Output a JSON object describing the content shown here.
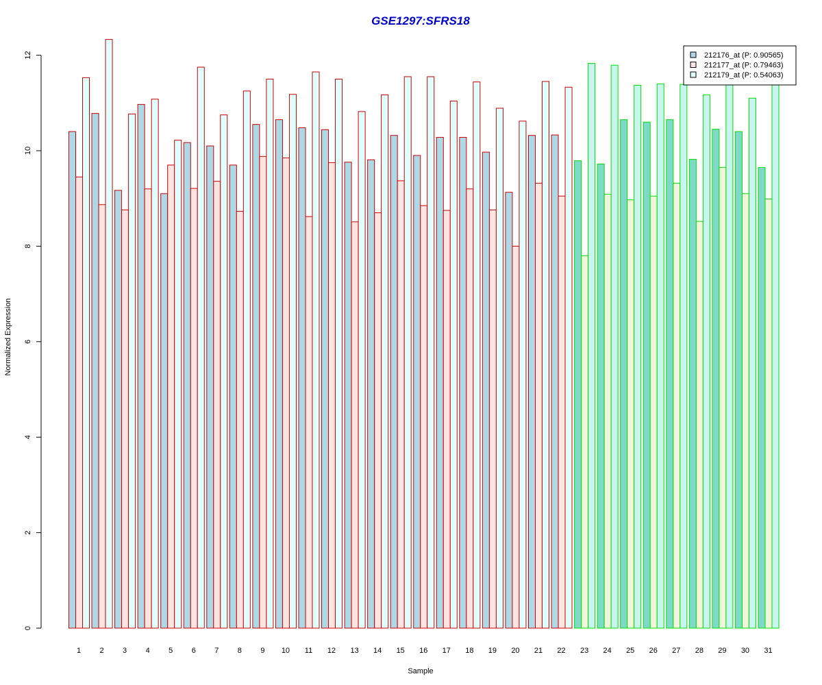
{
  "chart_data": {
    "type": "bar",
    "title": "GSE1297:SFRS18",
    "xlabel": "Sample",
    "ylabel": "Normalized Expression",
    "ylim": [
      0,
      12.5
    ],
    "yticks": [
      0,
      2,
      4,
      6,
      8,
      10,
      12
    ],
    "grid": false,
    "legend_position": "top-right",
    "categories": [
      "1",
      "2",
      "3",
      "4",
      "5",
      "6",
      "7",
      "8",
      "9",
      "10",
      "11",
      "12",
      "13",
      "14",
      "15",
      "16",
      "17",
      "18",
      "19",
      "20",
      "21",
      "22",
      "23",
      "24",
      "25",
      "26",
      "27",
      "28",
      "29",
      "30",
      "31"
    ],
    "group_split_after": 22,
    "series": [
      {
        "name": "212176_at (P: 0.90565)",
        "fill": "#add8e6",
        "fill_group2": "#7fd9c9",
        "values": [
          10.4,
          10.78,
          9.17,
          10.97,
          9.1,
          10.17,
          10.1,
          9.7,
          10.55,
          10.65,
          10.48,
          10.44,
          9.76,
          9.81,
          10.32,
          9.9,
          10.28,
          10.28,
          9.97,
          9.13,
          10.32,
          10.33,
          9.79,
          9.72,
          10.65,
          10.6,
          10.65,
          9.82,
          10.45,
          10.4,
          9.65
        ]
      },
      {
        "name": "212177_at (P: 0.79463)",
        "fill": "#ffe4e1",
        "fill_group2": "#f0f5dc",
        "values": [
          9.45,
          8.87,
          8.76,
          9.2,
          9.7,
          9.21,
          9.36,
          8.73,
          9.88,
          9.85,
          8.62,
          9.75,
          8.51,
          8.7,
          9.37,
          8.85,
          8.75,
          9.2,
          8.76,
          8.0,
          9.32,
          9.05,
          7.8,
          9.09,
          8.97,
          9.05,
          9.32,
          8.52,
          9.65,
          9.1,
          8.99
        ]
      },
      {
        "name": "212179_at (P: 0.54063)",
        "fill": "#e0ffff",
        "fill_group2": "#c8f5f0",
        "values": [
          11.53,
          12.33,
          10.77,
          11.08,
          10.22,
          11.75,
          10.75,
          11.25,
          11.5,
          11.18,
          11.65,
          11.5,
          10.82,
          11.17,
          11.55,
          11.55,
          11.04,
          11.44,
          10.89,
          10.62,
          11.45,
          11.33,
          11.83,
          11.79,
          11.37,
          11.4,
          11.39,
          11.17,
          11.5,
          11.1,
          11.55
        ]
      }
    ],
    "border_color_group1": "#cc0000",
    "border_color_group2": "#00e000",
    "title_color": "#0000cc"
  }
}
